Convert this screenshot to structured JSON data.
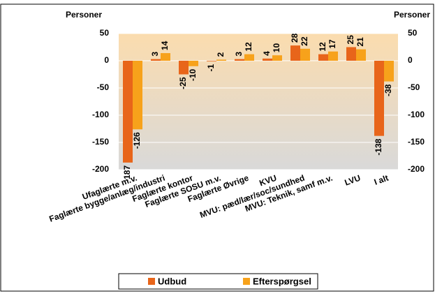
{
  "chart_data": {
    "type": "bar",
    "ylabel": "Personer",
    "y2label": "Personer",
    "categories": [
      "Ufaglærte m.v.",
      "Faglærte bygge/anlæg/industri",
      "Faglærte kontor",
      "Faglærte SOSU m.v.",
      "Faglærte Øvrige",
      "KVU",
      "MVU: pæd/lær/soc/sundhed",
      "MVU: Teknik, samf m.v.",
      "LVU",
      "I alt"
    ],
    "series": [
      {
        "name": "Udbud",
        "color": "#e8651a",
        "values": [
          -187,
          3,
          -25,
          -1,
          3,
          4,
          28,
          12,
          25,
          -138
        ]
      },
      {
        "name": "Efterspørgsel",
        "color": "#f7a21b",
        "values": [
          -126,
          14,
          -10,
          2,
          12,
          10,
          22,
          17,
          21,
          -38
        ]
      }
    ],
    "ylim": [
      -200,
      50
    ],
    "yticks": [
      -200,
      -150,
      -100,
      -50,
      0,
      50
    ],
    "y2lim": [
      -200,
      50
    ],
    "y2ticks": [
      -200,
      -150,
      -100,
      -50,
      0,
      50
    ],
    "grid": true,
    "legend": "bottom"
  }
}
